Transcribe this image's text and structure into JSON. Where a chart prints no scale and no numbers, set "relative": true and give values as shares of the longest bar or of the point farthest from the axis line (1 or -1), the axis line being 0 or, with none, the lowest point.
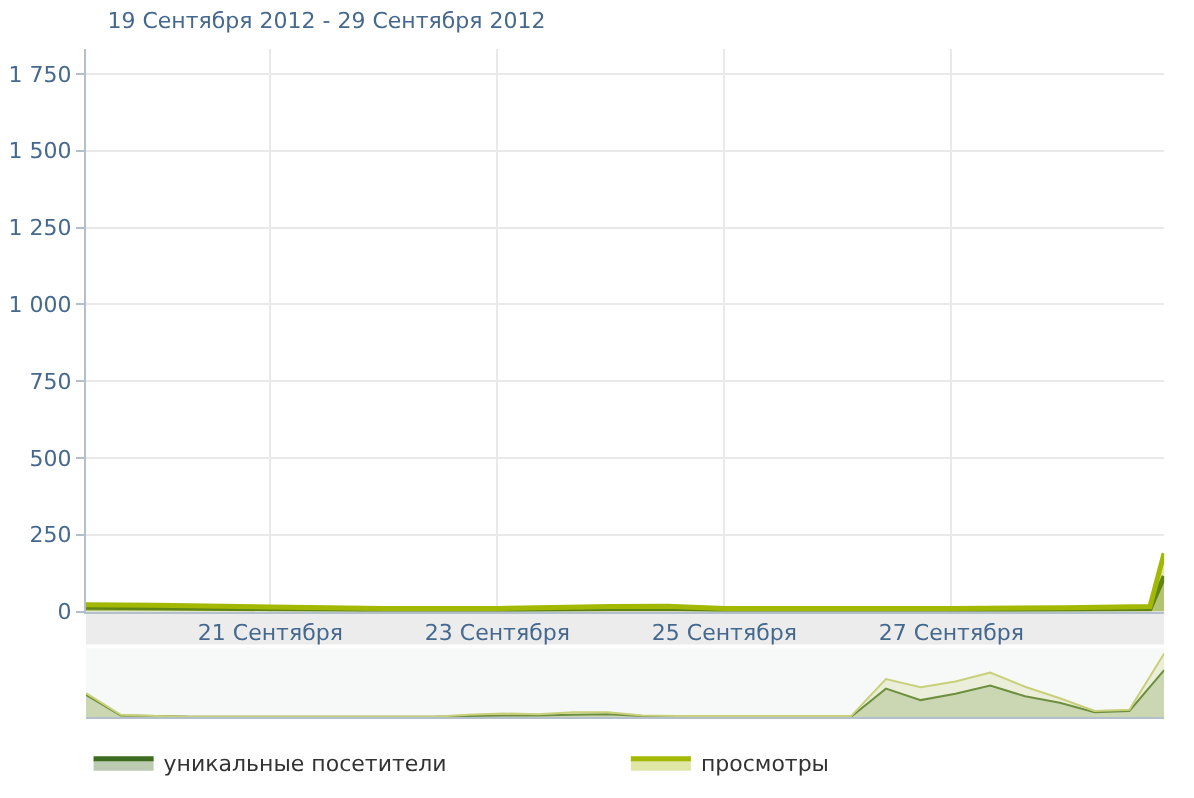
{
  "chart_data": [
    {
      "type": "area",
      "title": "19 Сентября 2012 - 29 Сентября 2012",
      "x": [
        "2012-09-19T09:00",
        "2012-09-20T00:00",
        "2012-09-21T00:00",
        "2012-09-22T00:00",
        "2012-09-23T00:00",
        "2012-09-24T00:00",
        "2012-09-24T12:00",
        "2012-09-25T00:00",
        "2012-09-26T00:00",
        "2012-09-27T00:00",
        "2012-09-28T00:00",
        "2012-09-28T18:00",
        "2012-09-28T21:00"
      ],
      "series": [
        {
          "name": "уникальные посетители",
          "color": "#3d6b1f",
          "values": [
            14,
            12,
            9,
            6,
            6,
            9,
            10,
            6,
            6,
            6,
            7,
            9,
            115
          ]
        },
        {
          "name": "просмотры",
          "color": "#a3b800",
          "values": [
            22,
            20,
            15,
            10,
            10,
            16,
            17,
            10,
            10,
            10,
            12,
            16,
            190
          ]
        }
      ],
      "xlim": [
        "2012-09-19T09:00",
        "2012-09-28T21:00"
      ],
      "xticks": [
        {
          "value": "2012-09-21",
          "label": "21 Сентября"
        },
        {
          "value": "2012-09-23",
          "label": "23 Сентября"
        },
        {
          "value": "2012-09-25",
          "label": "25 Сентября"
        },
        {
          "value": "2012-09-27",
          "label": "27 Сентября"
        }
      ],
      "ylim": [
        0,
        1830
      ],
      "yticks": [
        0,
        250,
        500,
        750,
        {
          "value": 1000,
          "label": "1 000"
        },
        {
          "value": 1250,
          "label": "1 250"
        },
        {
          "value": 1500,
          "label": "1 500"
        },
        {
          "value": 1750,
          "label": "1 750"
        }
      ],
      "grid": true,
      "legend": "bottom"
    },
    {
      "type": "area",
      "relative": true,
      "categories": [
        null,
        null,
        null,
        null,
        null,
        null,
        null,
        null,
        null,
        null,
        null,
        null,
        null,
        null,
        null,
        null,
        null,
        null,
        null,
        null,
        null,
        null,
        null,
        null,
        null,
        null,
        null,
        null,
        null,
        null,
        null,
        null
      ],
      "series": [
        {
          "color": "#4f7a2a",
          "values": [
            0.35,
            0.03,
            0.02,
            0.01,
            0.01,
            0.01,
            0.01,
            0.01,
            0.01,
            0.01,
            0.01,
            0.02,
            0.03,
            0.03,
            0.04,
            0.05,
            0.02,
            0.01,
            0.01,
            0.01,
            0.01,
            0.01,
            0.01,
            0.45,
            0.27,
            0.37,
            0.5,
            0.33,
            0.23,
            0.08,
            0.1,
            0.74
          ]
        },
        {
          "color": "#c8d07a",
          "values": [
            0.38,
            0.04,
            0.02,
            0.01,
            0.01,
            0.01,
            0.01,
            0.01,
            0.01,
            0.01,
            0.01,
            0.04,
            0.06,
            0.05,
            0.08,
            0.08,
            0.03,
            0.02,
            0.02,
            0.02,
            0.02,
            0.02,
            0.02,
            0.6,
            0.47,
            0.56,
            0.7,
            0.48,
            0.3,
            0.1,
            0.12,
            1.0
          ]
        }
      ]
    }
  ]
}
